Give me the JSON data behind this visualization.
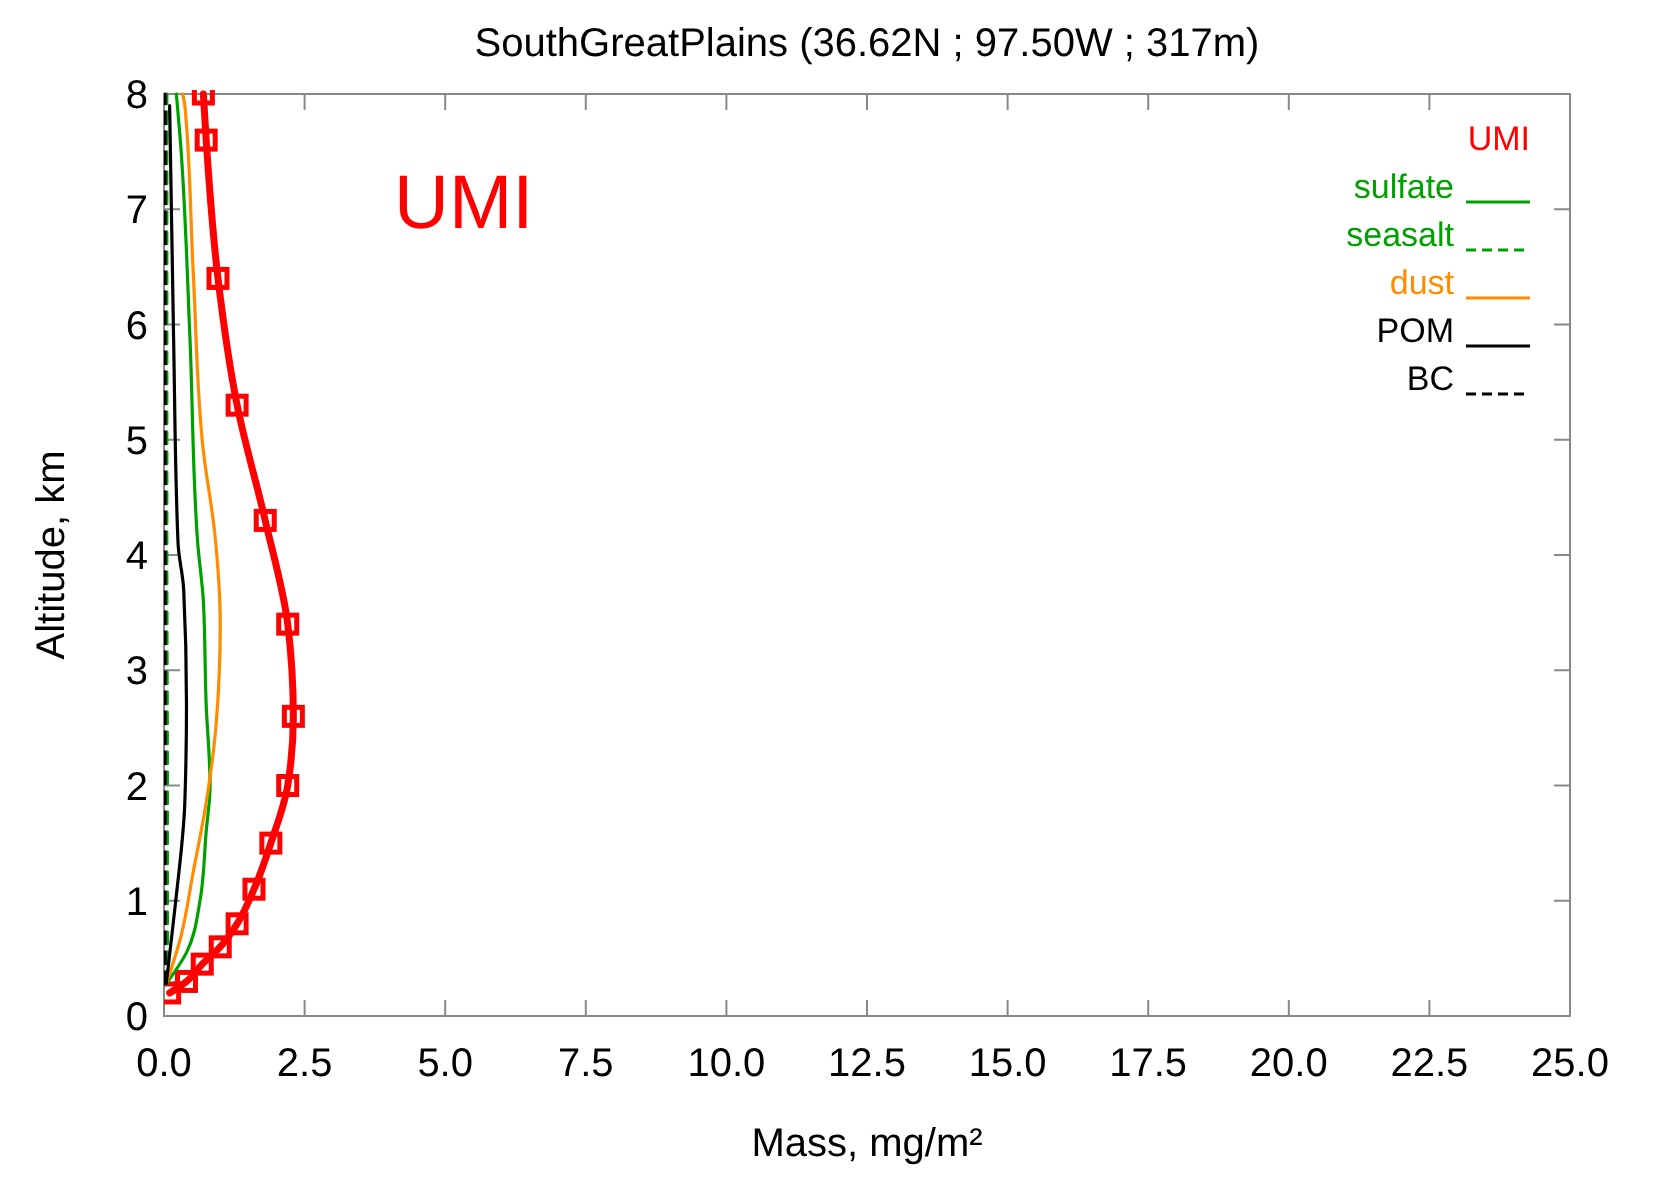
{
  "chart_data": {
    "type": "line",
    "title": "SouthGreatPlains (36.62N ; 97.50W ; 317m)",
    "xlabel": "Mass, mg/m²",
    "ylabel": "Altitude, km",
    "xlim": [
      0,
      25
    ],
    "ylim": [
      0,
      8
    ],
    "xticks": [
      {
        "value": 0,
        "label": "0.0"
      },
      {
        "value": 2.5,
        "label": "2.5"
      },
      {
        "value": 5,
        "label": "5.0"
      },
      {
        "value": 7.5,
        "label": "7.5"
      },
      {
        "value": 10,
        "label": "10.0"
      },
      {
        "value": 12.5,
        "label": "12.5"
      },
      {
        "value": 15,
        "label": "15.0"
      },
      {
        "value": 17.5,
        "label": "17.5"
      },
      {
        "value": 20,
        "label": "20.0"
      },
      {
        "value": 22.5,
        "label": "22.5"
      },
      {
        "value": 25,
        "label": "25.0"
      }
    ],
    "yticks": [
      0,
      1,
      2,
      3,
      4,
      5,
      6,
      7,
      8
    ],
    "grid": false,
    "legend": "top right",
    "annotations": [
      "UMI"
    ],
    "series": [
      {
        "name": "UMI",
        "color": "#ff0000",
        "marker": "square",
        "line_style": "solid",
        "x": [
          0.1,
          0.4,
          0.68,
          1.0,
          1.3,
          1.6,
          1.9,
          2.2,
          2.3,
          2.2,
          1.8,
          1.3,
          0.96,
          0.75,
          0.7
        ],
        "values": [
          0.2,
          0.3,
          0.45,
          0.6,
          0.8,
          1.1,
          1.5,
          2.0,
          2.6,
          3.4,
          4.3,
          5.3,
          6.4,
          7.6,
          8.0
        ]
      },
      {
        "name": "sulfate",
        "color": "#00a000",
        "marker": "none",
        "line_style": "solid",
        "x": [
          0.04,
          0.4,
          0.64,
          0.75,
          0.82,
          0.75,
          0.7,
          0.6,
          0.46,
          0.29,
          0.22
        ],
        "values": [
          0.28,
          0.55,
          1.0,
          1.6,
          2.0,
          2.7,
          3.6,
          4.1,
          5.9,
          7.6,
          8.0
        ]
      },
      {
        "name": "seasalt",
        "color": "#00a000",
        "marker": "none",
        "line_style": "dashed",
        "x": [
          0.06,
          0.06,
          0.05,
          0.05,
          0.05
        ],
        "values": [
          0.28,
          2.0,
          4.0,
          6.0,
          8.0
        ]
      },
      {
        "name": "dust",
        "color": "#ff8c00",
        "marker": "none",
        "line_style": "solid",
        "x": [
          0.04,
          0.29,
          0.52,
          0.75,
          0.93,
          1.0,
          0.9,
          0.7,
          0.52,
          0.37,
          0.33
        ],
        "values": [
          0.28,
          0.67,
          1.25,
          1.85,
          2.55,
          3.4,
          4.2,
          4.9,
          6.45,
          7.9,
          8.0
        ]
      },
      {
        "name": "POM",
        "color": "#000000",
        "marker": "none",
        "line_style": "solid",
        "x": [
          0.04,
          0.2,
          0.37,
          0.4,
          0.35,
          0.25,
          0.17,
          0.1
        ],
        "values": [
          0.28,
          0.96,
          1.85,
          2.7,
          3.7,
          4.1,
          5.9,
          7.9
        ]
      },
      {
        "name": "BC",
        "color": "#000000",
        "marker": "none",
        "line_style": "dashed",
        "x": [
          0.02,
          0.02,
          0.02,
          0.02
        ],
        "values": [
          0.28,
          3.0,
          6.0,
          8.0
        ]
      }
    ]
  }
}
